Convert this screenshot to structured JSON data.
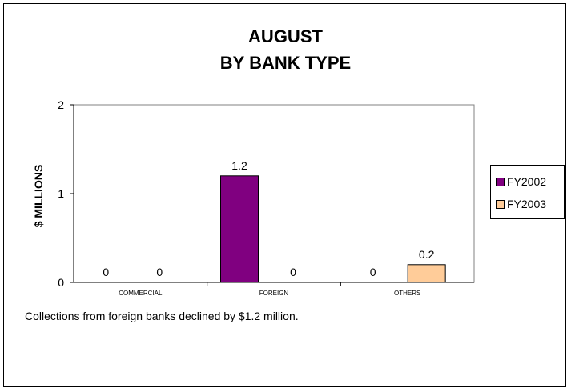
{
  "chart_data": {
    "type": "bar",
    "title_lines": [
      "AUGUST",
      "BY BANK TYPE"
    ],
    "ylabel": "$ MILLIONS",
    "xlabel": "",
    "categories": [
      "COMMERCIAL",
      "FOREIGN",
      "OTHERS"
    ],
    "series": [
      {
        "name": "FY2002",
        "values": [
          0,
          1.2,
          0
        ],
        "color": "#800080"
      },
      {
        "name": "FY2003",
        "values": [
          0,
          0,
          0.2
        ],
        "color": "#FFCC99"
      }
    ],
    "data_labels": [
      [
        "0",
        "1.2",
        "0"
      ],
      [
        "0",
        "0",
        "0.2"
      ]
    ],
    "ylim": [
      0,
      2
    ],
    "yticks": [
      "0",
      "1",
      "2"
    ],
    "grid": false,
    "legend_position": "right"
  },
  "caption": "Collections from foreign banks declined by $1.2 million."
}
